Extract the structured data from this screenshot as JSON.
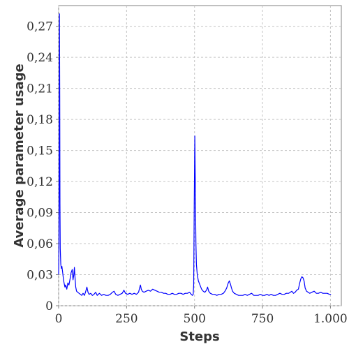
{
  "chart_data": {
    "type": "line",
    "title": "",
    "xlabel": "Steps",
    "ylabel": "Average parameter usage",
    "xlim": [
      0,
      1040
    ],
    "ylim": [
      0,
      0.29
    ],
    "x_ticks": [
      0,
      250,
      500,
      750,
      1000
    ],
    "x_tick_labels": [
      "0",
      "250",
      "500",
      "750",
      "1.000"
    ],
    "y_ticks": [
      0,
      0.03,
      0.06,
      0.09,
      0.12,
      0.15,
      0.18,
      0.21,
      0.24,
      0.27
    ],
    "y_tick_labels": [
      "0",
      "0,03",
      "0,06",
      "0,09",
      "0,12",
      "0,15",
      "0,18",
      "0,21",
      "0,24",
      "0,27"
    ],
    "grid": true,
    "legend": "none",
    "series": [
      {
        "color": "#0000ff",
        "points": [
          [
            0,
            0.03
          ],
          [
            1,
            0.05
          ],
          [
            2,
            0.14
          ],
          [
            3,
            0.282
          ],
          [
            4,
            0.2
          ],
          [
            5,
            0.1
          ],
          [
            6,
            0.055
          ],
          [
            8,
            0.04
          ],
          [
            10,
            0.036
          ],
          [
            12,
            0.038
          ],
          [
            15,
            0.032
          ],
          [
            18,
            0.025
          ],
          [
            20,
            0.022
          ],
          [
            23,
            0.018
          ],
          [
            26,
            0.02
          ],
          [
            30,
            0.016
          ],
          [
            34,
            0.022
          ],
          [
            38,
            0.02
          ],
          [
            42,
            0.026
          ],
          [
            46,
            0.032
          ],
          [
            50,
            0.035
          ],
          [
            53,
            0.025
          ],
          [
            56,
            0.03
          ],
          [
            58,
            0.037
          ],
          [
            60,
            0.028
          ],
          [
            63,
            0.018
          ],
          [
            66,
            0.014
          ],
          [
            70,
            0.013
          ],
          [
            75,
            0.012
          ],
          [
            80,
            0.011
          ],
          [
            85,
            0.01
          ],
          [
            90,
            0.012
          ],
          [
            95,
            0.01
          ],
          [
            100,
            0.014
          ],
          [
            104,
            0.018
          ],
          [
            108,
            0.013
          ],
          [
            112,
            0.011
          ],
          [
            118,
            0.012
          ],
          [
            124,
            0.01
          ],
          [
            130,
            0.011
          ],
          [
            136,
            0.013
          ],
          [
            142,
            0.01
          ],
          [
            150,
            0.012
          ],
          [
            158,
            0.01
          ],
          [
            166,
            0.011
          ],
          [
            174,
            0.01
          ],
          [
            182,
            0.01
          ],
          [
            190,
            0.011
          ],
          [
            198,
            0.013
          ],
          [
            204,
            0.014
          ],
          [
            210,
            0.011
          ],
          [
            218,
            0.01
          ],
          [
            226,
            0.011
          ],
          [
            234,
            0.012
          ],
          [
            240,
            0.015
          ],
          [
            246,
            0.012
          ],
          [
            254,
            0.011
          ],
          [
            262,
            0.012
          ],
          [
            270,
            0.011
          ],
          [
            278,
            0.012
          ],
          [
            286,
            0.011
          ],
          [
            294,
            0.013
          ],
          [
            298,
            0.017
          ],
          [
            301,
            0.02
          ],
          [
            304,
            0.016
          ],
          [
            308,
            0.014
          ],
          [
            314,
            0.013
          ],
          [
            322,
            0.014
          ],
          [
            330,
            0.015
          ],
          [
            338,
            0.014
          ],
          [
            346,
            0.016
          ],
          [
            354,
            0.015
          ],
          [
            362,
            0.014
          ],
          [
            370,
            0.013
          ],
          [
            378,
            0.013
          ],
          [
            386,
            0.012
          ],
          [
            394,
            0.012
          ],
          [
            402,
            0.011
          ],
          [
            410,
            0.011
          ],
          [
            418,
            0.012
          ],
          [
            426,
            0.011
          ],
          [
            434,
            0.011
          ],
          [
            442,
            0.012
          ],
          [
            450,
            0.012
          ],
          [
            458,
            0.011
          ],
          [
            466,
            0.012
          ],
          [
            474,
            0.012
          ],
          [
            482,
            0.013
          ],
          [
            488,
            0.011
          ],
          [
            492,
            0.01
          ],
          [
            495,
            0.011
          ],
          [
            497,
            0.02
          ],
          [
            499,
            0.1
          ],
          [
            501,
            0.164
          ],
          [
            503,
            0.11
          ],
          [
            505,
            0.06
          ],
          [
            507,
            0.04
          ],
          [
            510,
            0.03
          ],
          [
            514,
            0.024
          ],
          [
            520,
            0.02
          ],
          [
            526,
            0.016
          ],
          [
            532,
            0.014
          ],
          [
            538,
            0.013
          ],
          [
            544,
            0.015
          ],
          [
            548,
            0.018
          ],
          [
            552,
            0.014
          ],
          [
            558,
            0.012
          ],
          [
            566,
            0.011
          ],
          [
            574,
            0.011
          ],
          [
            582,
            0.01
          ],
          [
            590,
            0.011
          ],
          [
            598,
            0.011
          ],
          [
            606,
            0.012
          ],
          [
            612,
            0.014
          ],
          [
            618,
            0.017
          ],
          [
            624,
            0.022
          ],
          [
            628,
            0.024
          ],
          [
            632,
            0.021
          ],
          [
            636,
            0.017
          ],
          [
            640,
            0.014
          ],
          [
            646,
            0.012
          ],
          [
            654,
            0.011
          ],
          [
            662,
            0.01
          ],
          [
            670,
            0.01
          ],
          [
            678,
            0.01
          ],
          [
            686,
            0.011
          ],
          [
            694,
            0.01
          ],
          [
            702,
            0.011
          ],
          [
            710,
            0.012
          ],
          [
            718,
            0.01
          ],
          [
            726,
            0.01
          ],
          [
            734,
            0.01
          ],
          [
            742,
            0.011
          ],
          [
            750,
            0.01
          ],
          [
            758,
            0.01
          ],
          [
            766,
            0.011
          ],
          [
            774,
            0.01
          ],
          [
            782,
            0.011
          ],
          [
            790,
            0.01
          ],
          [
            798,
            0.01
          ],
          [
            806,
            0.011
          ],
          [
            814,
            0.012
          ],
          [
            822,
            0.011
          ],
          [
            830,
            0.011
          ],
          [
            838,
            0.012
          ],
          [
            846,
            0.012
          ],
          [
            852,
            0.013
          ],
          [
            858,
            0.014
          ],
          [
            864,
            0.012
          ],
          [
            870,
            0.013
          ],
          [
            876,
            0.015
          ],
          [
            882,
            0.016
          ],
          [
            887,
            0.022
          ],
          [
            891,
            0.026
          ],
          [
            895,
            0.028
          ],
          [
            899,
            0.027
          ],
          [
            903,
            0.024
          ],
          [
            907,
            0.017
          ],
          [
            912,
            0.014
          ],
          [
            918,
            0.013
          ],
          [
            924,
            0.012
          ],
          [
            932,
            0.013
          ],
          [
            940,
            0.014
          ],
          [
            948,
            0.012
          ],
          [
            956,
            0.012
          ],
          [
            964,
            0.013
          ],
          [
            972,
            0.012
          ],
          [
            980,
            0.012
          ],
          [
            988,
            0.012
          ],
          [
            996,
            0.011
          ],
          [
            1002,
            0.011
          ]
        ]
      }
    ]
  }
}
